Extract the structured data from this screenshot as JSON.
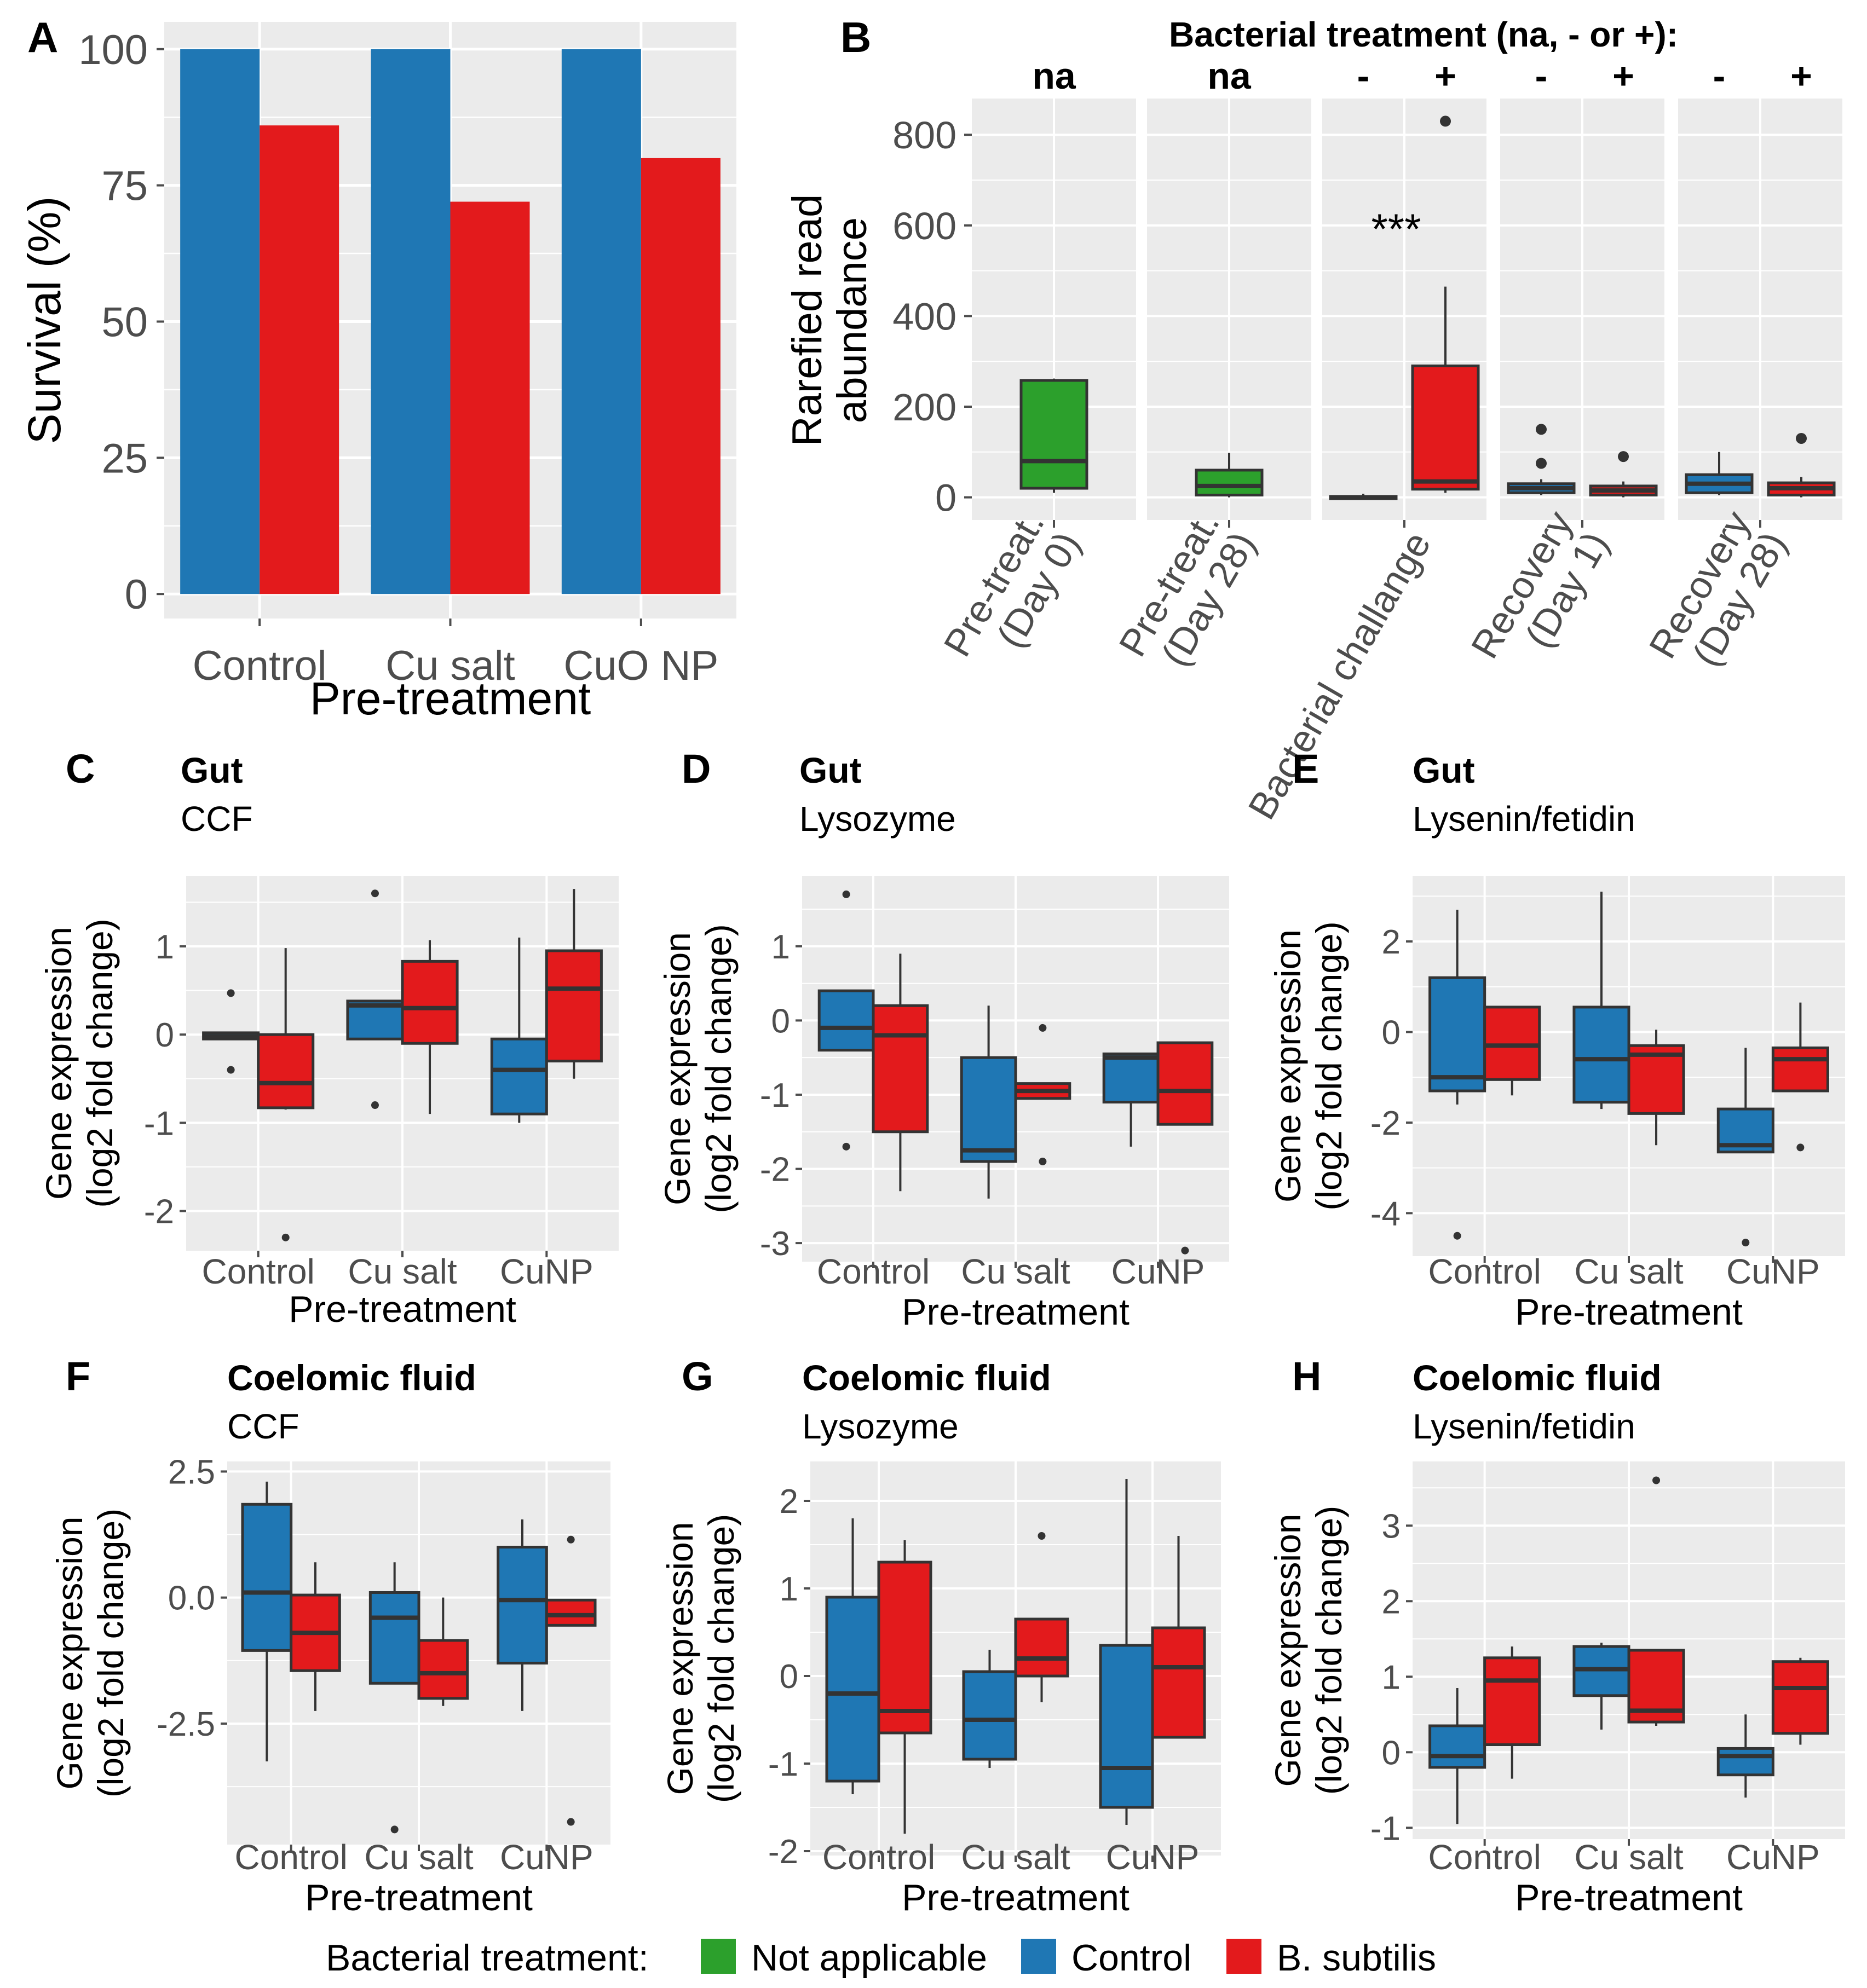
{
  "colors": {
    "not_applicable": "#2ca02c",
    "control": "#1f77b4",
    "subtilis": "#e31a1c",
    "panel_bg": "#ebebeb",
    "grid": "#ffffff",
    "box_line": "#333333"
  },
  "legend": {
    "title": "Bacterial treatment:",
    "items": [
      {
        "label": "Not applicable",
        "color_key": "not_applicable"
      },
      {
        "label": "Control",
        "color_key": "control"
      },
      {
        "label": "B. subtilis",
        "color_key": "subtilis"
      }
    ]
  },
  "chart_data": [
    {
      "panel": "A",
      "type": "bar",
      "title": "",
      "xlabel": "Pre-treatment",
      "ylabel": "Survival (%)",
      "categories": [
        "Control",
        "Cu salt",
        "CuO NP"
      ],
      "ylim": [
        0,
        100
      ],
      "yticks": [
        "0",
        "25",
        "50",
        "75",
        "100"
      ],
      "series": [
        {
          "name": "Control",
          "color_key": "control",
          "values": [
            100,
            100,
            100
          ]
        },
        {
          "name": "B. subtilis",
          "color_key": "subtilis",
          "values": [
            86,
            72,
            80
          ]
        }
      ]
    },
    {
      "panel": "B",
      "type": "box",
      "title": "Bacterial treatment (na, - or +):",
      "xlabel": "",
      "ylabel": "Rarefied read abundance",
      "ylim": [
        -50,
        880
      ],
      "yticks": [
        "0",
        "200",
        "400",
        "600",
        "800"
      ],
      "facets": [
        {
          "label": "Pre-treat. (Day 0)",
          "header": [
            "na"
          ],
          "boxes": [
            {
              "color_key": "not_applicable",
              "q1": 20,
              "median": 80,
              "q3": 258,
              "lo": 10,
              "hi": 262,
              "outliers": []
            }
          ]
        },
        {
          "label": "Pre-treat. (Day 28)",
          "header": [
            "na"
          ],
          "boxes": [
            {
              "color_key": "not_applicable",
              "q1": 5,
              "median": 25,
              "q3": 60,
              "lo": 0,
              "hi": 98,
              "outliers": []
            }
          ]
        },
        {
          "label": "Bacterial challange",
          "header": [
            "-",
            "+"
          ],
          "annotation": "***",
          "boxes": [
            {
              "color_key": "control",
              "q1": -2,
              "median": 0,
              "q3": 2,
              "lo": -3,
              "hi": 8,
              "outliers": []
            },
            {
              "color_key": "subtilis",
              "q1": 18,
              "median": 35,
              "q3": 290,
              "lo": 10,
              "hi": 465,
              "outliers": [
                830
              ]
            }
          ]
        },
        {
          "label": "Recovery (Day 1)",
          "header": [
            "-",
            "+"
          ],
          "boxes": [
            {
              "color_key": "control",
              "q1": 10,
              "median": 20,
              "q3": 30,
              "lo": 5,
              "hi": 40,
              "outliers": [
                75,
                150
              ]
            },
            {
              "color_key": "subtilis",
              "q1": 5,
              "median": 15,
              "q3": 25,
              "lo": 0,
              "hi": 35,
              "outliers": [
                90
              ]
            }
          ]
        },
        {
          "label": "Recovery (Day 28)",
          "header": [
            "-",
            "+"
          ],
          "boxes": [
            {
              "color_key": "control",
              "q1": 10,
              "median": 30,
              "q3": 50,
              "lo": 5,
              "hi": 100,
              "outliers": []
            },
            {
              "color_key": "subtilis",
              "q1": 5,
              "median": 20,
              "q3": 32,
              "lo": 0,
              "hi": 45,
              "outliers": [
                130
              ]
            }
          ]
        }
      ]
    },
    {
      "panel": "C",
      "type": "box",
      "title": "Gut",
      "subtitle": "CCF",
      "xlabel": "Pre-treatment",
      "ylabel": "Gene expression (log2 fold change)",
      "ylim": [
        -2.45,
        1.8
      ],
      "yticks": [
        {
          "v": 1,
          "t": "1"
        },
        {
          "v": 0,
          "t": "0"
        },
        {
          "v": -1,
          "t": "-1"
        },
        {
          "v": -2,
          "t": "-2"
        }
      ],
      "categories": [
        "Control",
        "Cu salt",
        "CuNP"
      ],
      "groups": [
        [
          {
            "color_key": "control",
            "q1": -0.05,
            "median": -0.02,
            "q3": 0.02,
            "lo": -0.05,
            "hi": 0.02,
            "outliers": [
              0.47,
              -0.4
            ]
          },
          {
            "color_key": "subtilis",
            "q1": -0.83,
            "median": -0.55,
            "q3": 0.0,
            "lo": -0.85,
            "hi": 0.98,
            "outliers": [
              -2.3
            ]
          }
        ],
        [
          {
            "color_key": "control",
            "q1": -0.05,
            "median": 0.33,
            "q3": 0.38,
            "lo": -0.05,
            "hi": 0.38,
            "outliers": [
              1.6,
              -0.8
            ]
          },
          {
            "color_key": "subtilis",
            "q1": -0.1,
            "median": 0.3,
            "q3": 0.83,
            "lo": -0.9,
            "hi": 1.07,
            "outliers": []
          }
        ],
        [
          {
            "color_key": "control",
            "q1": -0.9,
            "median": -0.4,
            "q3": -0.05,
            "lo": -1.0,
            "hi": 1.1,
            "outliers": []
          },
          {
            "color_key": "subtilis",
            "q1": -0.3,
            "median": 0.52,
            "q3": 0.95,
            "lo": -0.5,
            "hi": 1.65,
            "outliers": []
          }
        ]
      ]
    },
    {
      "panel": "D",
      "type": "box",
      "title": "Gut",
      "subtitle": "Lysozyme",
      "xlabel": "Pre-treatment",
      "ylabel": "Gene expression (log2 fold change)",
      "ylim": [
        -3.25,
        1.95
      ],
      "yticks": [
        {
          "v": 1,
          "t": "1"
        },
        {
          "v": 0,
          "t": "0"
        },
        {
          "v": -1,
          "t": "-1"
        },
        {
          "v": -2,
          "t": "-2"
        },
        {
          "v": -3,
          "t": "-3"
        }
      ],
      "categories": [
        "Control",
        "Cu salt",
        "CuNP"
      ],
      "groups": [
        [
          {
            "color_key": "control",
            "q1": -0.4,
            "median": -0.1,
            "q3": 0.4,
            "lo": -0.4,
            "hi": 0.4,
            "outliers": [
              1.7,
              -1.7
            ]
          },
          {
            "color_key": "subtilis",
            "q1": -1.5,
            "median": -0.2,
            "q3": 0.2,
            "lo": -2.3,
            "hi": 0.9,
            "outliers": []
          }
        ],
        [
          {
            "color_key": "control",
            "q1": -1.9,
            "median": -1.75,
            "q3": -0.5,
            "lo": -2.4,
            "hi": 0.2,
            "outliers": []
          },
          {
            "color_key": "subtilis",
            "q1": -1.05,
            "median": -0.95,
            "q3": -0.85,
            "lo": -1.05,
            "hi": -0.85,
            "outliers": [
              -0.1,
              -1.9
            ]
          }
        ],
        [
          {
            "color_key": "control",
            "q1": -1.1,
            "median": -0.5,
            "q3": -0.45,
            "lo": -1.7,
            "hi": -0.45,
            "outliers": []
          },
          {
            "color_key": "subtilis",
            "q1": -1.4,
            "median": -0.95,
            "q3": -0.3,
            "lo": -1.4,
            "hi": -0.3,
            "outliers": [
              -3.1
            ]
          }
        ]
      ]
    },
    {
      "panel": "E",
      "type": "box",
      "title": "Gut",
      "subtitle": "Lysenin/fetidin",
      "xlabel": "Pre-treatment",
      "ylabel": "Gene expression (log2 fold change)",
      "ylim": [
        -4.95,
        3.45
      ],
      "yticks": [
        {
          "v": 2,
          "t": "2"
        },
        {
          "v": 0,
          "t": "0"
        },
        {
          "v": -2,
          "t": "-2"
        },
        {
          "v": -4,
          "t": "-4"
        }
      ],
      "categories": [
        "Control",
        "Cu salt",
        "CuNP"
      ],
      "groups": [
        [
          {
            "color_key": "control",
            "q1": -1.3,
            "median": -1.0,
            "q3": 1.2,
            "lo": -1.6,
            "hi": 2.7,
            "outliers": [
              -4.5
            ]
          },
          {
            "color_key": "subtilis",
            "q1": -1.05,
            "median": -0.3,
            "q3": 0.55,
            "lo": -1.4,
            "hi": 0.55,
            "outliers": []
          }
        ],
        [
          {
            "color_key": "control",
            "q1": -1.55,
            "median": -0.6,
            "q3": 0.55,
            "lo": -1.7,
            "hi": 3.1,
            "outliers": []
          },
          {
            "color_key": "subtilis",
            "q1": -1.8,
            "median": -0.5,
            "q3": -0.3,
            "lo": -2.5,
            "hi": 0.05,
            "outliers": []
          }
        ],
        [
          {
            "color_key": "control",
            "q1": -2.65,
            "median": -2.5,
            "q3": -1.7,
            "lo": -2.65,
            "hi": -0.35,
            "outliers": [
              -4.65
            ]
          },
          {
            "color_key": "subtilis",
            "q1": -1.3,
            "median": -0.6,
            "q3": -0.35,
            "lo": -1.3,
            "hi": 0.65,
            "outliers": [
              -2.55
            ]
          }
        ]
      ]
    },
    {
      "panel": "F",
      "type": "box",
      "title": "Coelomic fluid",
      "subtitle": "CCF",
      "xlabel": "Pre-treatment",
      "ylabel": "Gene expression (log2 fold change)",
      "ylim": [
        -4.9,
        2.7
      ],
      "yticks": [
        {
          "v": 2.5,
          "t": "2.5"
        },
        {
          "v": 0,
          "t": "0.0"
        },
        {
          "v": -2.5,
          "t": "-2.5"
        }
      ],
      "categories": [
        "Control",
        "Cu salt",
        "CuNP"
      ],
      "groups": [
        [
          {
            "color_key": "control",
            "q1": -1.05,
            "median": 0.1,
            "q3": 1.85,
            "lo": -3.25,
            "hi": 2.3,
            "outliers": []
          },
          {
            "color_key": "subtilis",
            "q1": -1.45,
            "median": -0.7,
            "q3": 0.05,
            "lo": -2.25,
            "hi": 0.7,
            "outliers": []
          }
        ],
        [
          {
            "color_key": "control",
            "q1": -1.7,
            "median": -0.4,
            "q3": 0.1,
            "lo": -1.7,
            "hi": 0.7,
            "outliers": [
              -4.6
            ]
          },
          {
            "color_key": "subtilis",
            "q1": -2.0,
            "median": -1.5,
            "q3": -0.85,
            "lo": -2.15,
            "hi": 0.0,
            "outliers": []
          }
        ],
        [
          {
            "color_key": "control",
            "q1": -1.3,
            "median": -0.05,
            "q3": 1.0,
            "lo": -2.25,
            "hi": 1.55,
            "outliers": []
          },
          {
            "color_key": "subtilis",
            "q1": -0.55,
            "median": -0.35,
            "q3": -0.05,
            "lo": -0.55,
            "hi": -0.05,
            "outliers": [
              1.15,
              -4.45
            ]
          }
        ]
      ]
    },
    {
      "panel": "G",
      "type": "box",
      "title": "Coelomic fluid",
      "subtitle": "Lysozyme",
      "xlabel": "Pre-treatment",
      "ylabel": "Gene expression (log2 fold change)",
      "ylim": [
        -2.05,
        2.45
      ],
      "yticks": [
        {
          "v": 2,
          "t": "2"
        },
        {
          "v": 1,
          "t": "1"
        },
        {
          "v": 0,
          "t": "0"
        },
        {
          "v": -1,
          "t": "-1"
        },
        {
          "v": -2,
          "t": "-2"
        }
      ],
      "categories": [
        "Control",
        "Cu salt",
        "CuNP"
      ],
      "groups": [
        [
          {
            "color_key": "control",
            "q1": -1.2,
            "median": -0.2,
            "q3": 0.9,
            "lo": -1.35,
            "hi": 1.8,
            "outliers": []
          },
          {
            "color_key": "subtilis",
            "q1": -0.65,
            "median": -0.4,
            "q3": 1.3,
            "lo": -1.8,
            "hi": 1.55,
            "outliers": []
          }
        ],
        [
          {
            "color_key": "control",
            "q1": -0.95,
            "median": -0.5,
            "q3": 0.05,
            "lo": -1.05,
            "hi": 0.3,
            "outliers": []
          },
          {
            "color_key": "subtilis",
            "q1": 0.0,
            "median": 0.2,
            "q3": 0.65,
            "lo": -0.3,
            "hi": 0.65,
            "outliers": [
              1.6
            ]
          }
        ],
        [
          {
            "color_key": "control",
            "q1": -1.5,
            "median": -1.05,
            "q3": 0.35,
            "lo": -1.7,
            "hi": 2.25,
            "outliers": []
          },
          {
            "color_key": "subtilis",
            "q1": -0.7,
            "median": 0.1,
            "q3": 0.55,
            "lo": -0.7,
            "hi": 1.6,
            "outliers": []
          }
        ]
      ]
    },
    {
      "panel": "H",
      "type": "box",
      "title": "Coelomic fluid",
      "subtitle": "Lysenin/fetidin",
      "xlabel": "Pre-treatment",
      "ylabel": "Gene expression (log2 fold change)",
      "ylim": [
        -1.15,
        3.85
      ],
      "yticks": [
        {
          "v": 3,
          "t": "3"
        },
        {
          "v": 2,
          "t": "2"
        },
        {
          "v": 1,
          "t": "1"
        },
        {
          "v": 0,
          "t": "0"
        },
        {
          "v": -1,
          "t": "-1"
        }
      ],
      "categories": [
        "Control",
        "Cu salt",
        "CuNP"
      ],
      "groups": [
        [
          {
            "color_key": "control",
            "q1": -0.2,
            "median": -0.05,
            "q3": 0.35,
            "lo": -0.95,
            "hi": 0.85,
            "outliers": []
          },
          {
            "color_key": "subtilis",
            "q1": 0.1,
            "median": 0.95,
            "q3": 1.25,
            "lo": -0.35,
            "hi": 1.4,
            "outliers": []
          }
        ],
        [
          {
            "color_key": "control",
            "q1": 0.75,
            "median": 1.1,
            "q3": 1.4,
            "lo": 0.3,
            "hi": 1.45,
            "outliers": []
          },
          {
            "color_key": "subtilis",
            "q1": 0.4,
            "median": 0.55,
            "q3": 1.35,
            "lo": 0.35,
            "hi": 1.35,
            "outliers": [
              3.6
            ]
          }
        ],
        [
          {
            "color_key": "control",
            "q1": -0.3,
            "median": -0.05,
            "q3": 0.05,
            "lo": -0.6,
            "hi": 0.5,
            "outliers": []
          },
          {
            "color_key": "subtilis",
            "q1": 0.25,
            "median": 0.85,
            "q3": 1.2,
            "lo": 0.1,
            "hi": 1.25,
            "outliers": []
          }
        ]
      ]
    }
  ]
}
